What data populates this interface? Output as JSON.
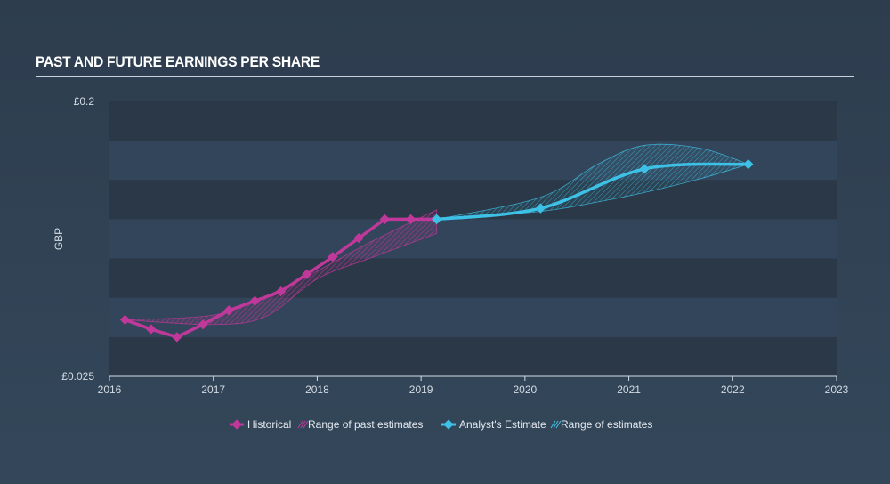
{
  "header": {
    "title": "PAST AND FUTURE EARNINGS PER SHARE"
  },
  "colors": {
    "historical": "#c0399a",
    "estimate": "#3ec1e6",
    "band_dark": "#2a3848",
    "band_light": "#33455a",
    "axis": "#d4dbe3"
  },
  "chart_data": {
    "type": "line",
    "ylabel": "GBP",
    "xlim": [
      2016,
      2023
    ],
    "ylim": [
      0.025,
      0.2
    ],
    "x_ticks": [
      "2016",
      "2017",
      "2018",
      "2019",
      "2020",
      "2021",
      "2022",
      "2023"
    ],
    "y_tick_labels": [
      {
        "value": 0.2,
        "label": "£0.2"
      },
      {
        "value": 0.025,
        "label": "£0.025"
      }
    ],
    "series": [
      {
        "name": "Historical",
        "points": [
          [
            2016.15,
            0.061
          ],
          [
            2016.4,
            0.055
          ],
          [
            2016.65,
            0.05
          ],
          [
            2016.9,
            0.058
          ],
          [
            2017.15,
            0.067
          ],
          [
            2017.4,
            0.073
          ],
          [
            2017.65,
            0.079
          ],
          [
            2017.9,
            0.09
          ],
          [
            2018.15,
            0.101
          ],
          [
            2018.4,
            0.113
          ],
          [
            2018.65,
            0.125
          ],
          [
            2018.9,
            0.125
          ],
          [
            2019.15,
            0.125
          ]
        ]
      },
      {
        "name": "Analyst's Estimate",
        "points": [
          [
            2019.15,
            0.125
          ],
          [
            2020.15,
            0.132
          ],
          [
            2021.15,
            0.157
          ],
          [
            2022.15,
            0.16
          ]
        ]
      }
    ],
    "ranges": [
      {
        "name": "Range of past estimates",
        "upper": [
          [
            2016.15,
            0.061
          ],
          [
            2017.0,
            0.064
          ],
          [
            2017.5,
            0.076
          ],
          [
            2018.0,
            0.092
          ],
          [
            2018.5,
            0.11
          ],
          [
            2019.15,
            0.131
          ]
        ],
        "lower": [
          [
            2016.15,
            0.061
          ],
          [
            2017.0,
            0.058
          ],
          [
            2017.5,
            0.063
          ],
          [
            2018.0,
            0.087
          ],
          [
            2018.5,
            0.1
          ],
          [
            2019.15,
            0.116
          ]
        ]
      },
      {
        "name": "Range of estimates",
        "upper": [
          [
            2019.15,
            0.125
          ],
          [
            2020.15,
            0.139
          ],
          [
            2020.7,
            0.16
          ],
          [
            2021.15,
            0.172
          ],
          [
            2021.7,
            0.17
          ],
          [
            2022.15,
            0.16
          ]
        ],
        "lower": [
          [
            2019.15,
            0.125
          ],
          [
            2020.15,
            0.13
          ],
          [
            2020.7,
            0.136
          ],
          [
            2021.15,
            0.142
          ],
          [
            2021.7,
            0.151
          ],
          [
            2022.15,
            0.16
          ]
        ]
      }
    ],
    "legend": {
      "placement": "bottom-center",
      "items": [
        "Historical",
        "Range of past estimates",
        "Analyst's Estimate",
        "Range of estimates"
      ]
    },
    "grid": "horizontal-bands"
  }
}
